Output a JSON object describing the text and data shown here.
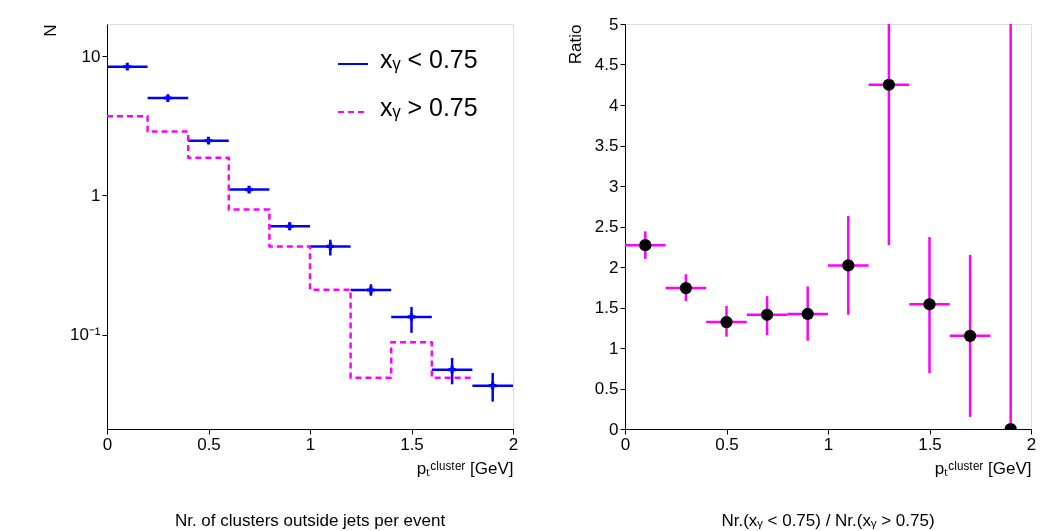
{
  "chart_data": [
    {
      "type": "scatter",
      "xlabel": "pₜᶜˡᵘˢᵗᵉʳ  [GeV]",
      "ylabel": "N",
      "log": "y",
      "xlim": [
        0,
        2
      ],
      "xticks": [
        0,
        0.5,
        1,
        1.5,
        2
      ],
      "ylim": [
        0.021,
        17
      ],
      "yticks": [
        10,
        1,
        {
          "value": 0.1,
          "label": "10⁻¹"
        }
      ],
      "grid": false,
      "legend": "top right",
      "annotations": [
        "Nr. of clusters outside jets per event"
      ],
      "series": [
        {
          "name": "xᵧ < 0.75",
          "color": "#0000ff",
          "marker": "cross",
          "x": [
            0.1,
            0.3,
            0.5,
            0.7,
            0.9,
            1.1,
            1.3,
            1.5,
            1.7,
            1.9
          ],
          "values": [
            8.4,
            5.0,
            2.47,
            1.1,
            0.6,
            0.43,
            0.209,
            0.134,
            0.056,
            0.043
          ],
          "xerrors": [
            0.1,
            0.1,
            0.1,
            0.1,
            0.1,
            0.1,
            0.1,
            0.1,
            0.1,
            0.1
          ],
          "errors": [
            null,
            null,
            null,
            [
              1.04,
              1.15
            ],
            [
              0.56,
              0.64
            ],
            [
              0.37,
              0.48
            ],
            [
              0.19,
              0.23
            ],
            [
              0.103,
              0.158
            ],
            [
              0.044,
              0.068
            ],
            [
              0.033,
              0.053
            ]
          ]
        },
        {
          "name": "xᵧ > 0.75",
          "type": "step",
          "color": "#ff00ff",
          "line_style": "dashed",
          "x": [
            0,
            0.2,
            0.4,
            0.6,
            0.8,
            1.0,
            1.2,
            1.4,
            1.6,
            1.8
          ],
          "values": [
            3.7,
            2.87,
            1.86,
            0.79,
            0.43,
            0.21,
            0.049,
            0.088,
            0.049,
            0.049
          ]
        }
      ]
    },
    {
      "type": "scatter",
      "xlabel": "pₜᶜˡᵘˢᵗᵉʳ  [GeV]",
      "ylabel": "Ratio",
      "xlim": [
        0,
        2
      ],
      "xticks": [
        0,
        0.5,
        1,
        1.5,
        2
      ],
      "ylim": [
        0,
        5
      ],
      "yticks": [
        0,
        0.5,
        1,
        1.5,
        2,
        2.5,
        3,
        3.5,
        4,
        4.5,
        5
      ],
      "grid": false,
      "marker": "circle",
      "annotations": [
        "Nr.(xᵧ < 0.75) / Nr.(xᵧ > 0.75)"
      ],
      "series": [
        {
          "color": "#ff00ff",
          "colors": [
            "#000000",
            "#000000",
            "#000000",
            "#000000",
            "#000000",
            "#000000",
            "#000000",
            "#000000",
            "#000000",
            "#000000"
          ],
          "x": [
            0.1,
            0.3,
            0.5,
            0.7,
            0.9,
            1.1,
            1.3,
            1.5,
            1.7,
            1.9
          ],
          "values": [
            2.27,
            1.74,
            1.32,
            1.41,
            1.42,
            2.02,
            4.25,
            1.54,
            1.15,
            0
          ],
          "xerrors": [
            0.1,
            0.1,
            0.1,
            0.1,
            0.1,
            0.1,
            0.1,
            0.1,
            0.1,
            null
          ],
          "errors": [
            [
              2.1,
              2.44
            ],
            [
              1.58,
              1.91
            ],
            [
              1.14,
              1.52
            ],
            [
              1.16,
              1.64
            ],
            [
              1.09,
              1.76
            ],
            [
              1.41,
              2.63
            ],
            [
              2.27,
              5
            ],
            [
              0.69,
              2.37
            ],
            [
              0.15,
              2.15
            ],
            [
              0,
              5
            ]
          ]
        }
      ]
    }
  ]
}
